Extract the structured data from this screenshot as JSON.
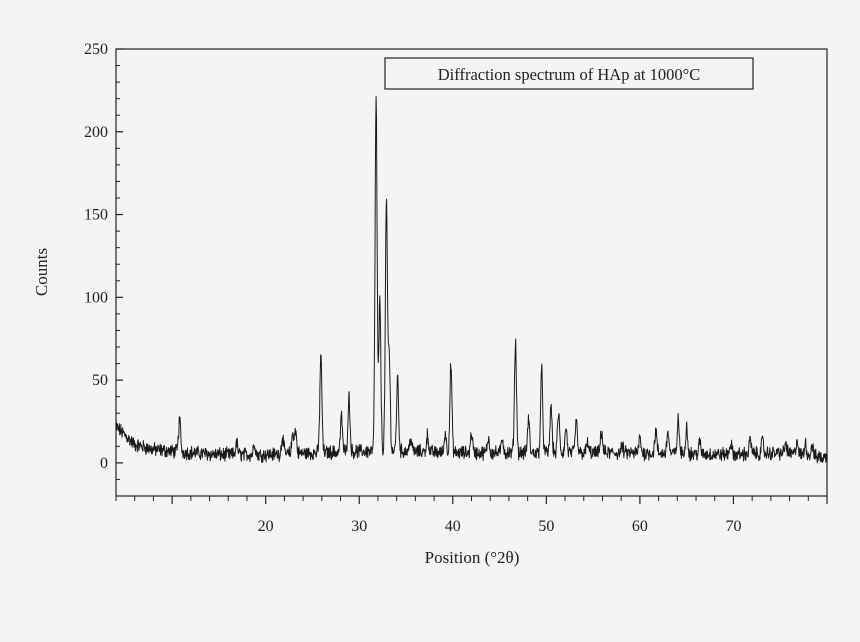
{
  "chart_data": {
    "type": "line",
    "title": "",
    "xlabel": "Position (°2θ)",
    "ylabel": "Counts",
    "xlim": [
      4,
      80
    ],
    "ylim": [
      -20,
      250
    ],
    "x_ticks": [
      20,
      30,
      40,
      50,
      60,
      70
    ],
    "x_tick_labels": [
      "20",
      "30",
      "40",
      "50",
      "60",
      "70"
    ],
    "y_ticks": [
      0,
      50,
      100,
      150,
      200,
      250
    ],
    "y_tick_labels": [
      "0",
      "50",
      "100",
      "150",
      "200",
      "250"
    ],
    "legend": {
      "text": "Diffraction spectrum of HAp at 1000°C",
      "placement": "top-right"
    },
    "grid": false,
    "series": [
      {
        "color": "#1a1a1a",
        "baseline": [
          [
            4,
            22
          ],
          [
            6,
            11
          ],
          [
            8,
            8
          ],
          [
            10,
            7
          ],
          [
            15,
            5
          ],
          [
            20,
            5
          ],
          [
            25,
            6
          ],
          [
            30,
            7
          ],
          [
            35,
            7
          ],
          [
            40,
            6
          ],
          [
            50,
            6
          ],
          [
            60,
            6
          ],
          [
            70,
            5
          ],
          [
            75,
            6
          ],
          [
            80,
            3
          ]
        ],
        "peaks": [
          {
            "x": 10.8,
            "y": 26
          },
          {
            "x": 16.9,
            "y": 12
          },
          {
            "x": 18.8,
            "y": 12
          },
          {
            "x": 21.8,
            "y": 16
          },
          {
            "x": 22.9,
            "y": 18
          },
          {
            "x": 23.2,
            "y": 19
          },
          {
            "x": 25.9,
            "y": 65
          },
          {
            "x": 28.1,
            "y": 28
          },
          {
            "x": 28.9,
            "y": 40
          },
          {
            "x": 31.8,
            "y": 219
          },
          {
            "x": 32.2,
            "y": 97
          },
          {
            "x": 32.9,
            "y": 156
          },
          {
            "x": 33.2,
            "y": 65
          },
          {
            "x": 34.1,
            "y": 51
          },
          {
            "x": 35.5,
            "y": 15
          },
          {
            "x": 37.3,
            "y": 17
          },
          {
            "x": 39.2,
            "y": 18
          },
          {
            "x": 39.8,
            "y": 59
          },
          {
            "x": 42.0,
            "y": 18
          },
          {
            "x": 43.8,
            "y": 15
          },
          {
            "x": 45.3,
            "y": 15
          },
          {
            "x": 46.7,
            "y": 73
          },
          {
            "x": 48.1,
            "y": 26
          },
          {
            "x": 49.5,
            "y": 56
          },
          {
            "x": 50.5,
            "y": 34
          },
          {
            "x": 51.3,
            "y": 30
          },
          {
            "x": 52.1,
            "y": 21
          },
          {
            "x": 53.2,
            "y": 25
          },
          {
            "x": 54.4,
            "y": 12
          },
          {
            "x": 55.9,
            "y": 19
          },
          {
            "x": 58.1,
            "y": 10
          },
          {
            "x": 60.0,
            "y": 15
          },
          {
            "x": 61.7,
            "y": 19
          },
          {
            "x": 63.0,
            "y": 19
          },
          {
            "x": 64.1,
            "y": 26
          },
          {
            "x": 65.0,
            "y": 22
          },
          {
            "x": 66.4,
            "y": 12
          },
          {
            "x": 69.7,
            "y": 12
          },
          {
            "x": 71.8,
            "y": 14
          },
          {
            "x": 73.1,
            "y": 13
          },
          {
            "x": 75.6,
            "y": 12
          },
          {
            "x": 76.8,
            "y": 14
          },
          {
            "x": 77.7,
            "y": 12
          },
          {
            "x": 78.4,
            "y": 11
          }
        ]
      }
    ]
  }
}
